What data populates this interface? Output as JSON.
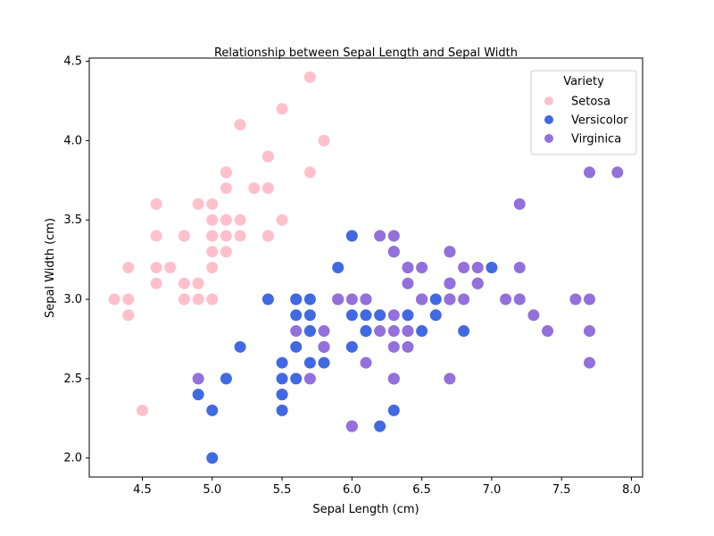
{
  "chart_data": {
    "type": "scatter",
    "title": "Relationship between Sepal Length and Sepal Width",
    "xlabel": "Sepal Length (cm)",
    "ylabel": "Sepal Width (cm)",
    "xlim": [
      4.12,
      8.08
    ],
    "ylim": [
      1.88,
      4.52
    ],
    "xticks": [
      "4.5",
      "5.0",
      "5.5",
      "6.0",
      "6.5",
      "7.0",
      "7.5",
      "8.0"
    ],
    "yticks": [
      "2.0",
      "2.5",
      "3.0",
      "3.5",
      "4.0",
      "4.5"
    ],
    "grid": false,
    "legend": {
      "title": "Variety",
      "placement": "top-right"
    },
    "series": [
      {
        "name": "Setosa",
        "color": "#ffc0cb",
        "points": [
          [
            5.1,
            3.5
          ],
          [
            4.9,
            3.0
          ],
          [
            4.7,
            3.2
          ],
          [
            4.6,
            3.1
          ],
          [
            5.0,
            3.6
          ],
          [
            5.4,
            3.9
          ],
          [
            4.6,
            3.4
          ],
          [
            5.0,
            3.4
          ],
          [
            4.4,
            2.9
          ],
          [
            4.9,
            3.1
          ],
          [
            5.4,
            3.7
          ],
          [
            4.8,
            3.4
          ],
          [
            4.8,
            3.0
          ],
          [
            4.3,
            3.0
          ],
          [
            5.8,
            4.0
          ],
          [
            5.7,
            4.4
          ],
          [
            5.4,
            3.9
          ],
          [
            5.1,
            3.5
          ],
          [
            5.7,
            3.8
          ],
          [
            5.1,
            3.8
          ],
          [
            5.4,
            3.4
          ],
          [
            5.1,
            3.7
          ],
          [
            4.6,
            3.6
          ],
          [
            5.1,
            3.3
          ],
          [
            4.8,
            3.4
          ],
          [
            5.0,
            3.0
          ],
          [
            5.0,
            3.4
          ],
          [
            5.2,
            3.5
          ],
          [
            5.2,
            3.4
          ],
          [
            4.7,
            3.2
          ],
          [
            4.8,
            3.1
          ],
          [
            5.4,
            3.4
          ],
          [
            5.2,
            4.1
          ],
          [
            5.5,
            4.2
          ],
          [
            4.9,
            3.1
          ],
          [
            5.0,
            3.2
          ],
          [
            5.5,
            3.5
          ],
          [
            4.9,
            3.6
          ],
          [
            4.4,
            3.0
          ],
          [
            5.1,
            3.4
          ],
          [
            5.0,
            3.5
          ],
          [
            4.5,
            2.3
          ],
          [
            4.4,
            3.2
          ],
          [
            5.0,
            3.5
          ],
          [
            5.1,
            3.8
          ],
          [
            4.8,
            3.0
          ],
          [
            5.1,
            3.8
          ],
          [
            4.6,
            3.2
          ],
          [
            5.3,
            3.7
          ],
          [
            5.0,
            3.3
          ]
        ]
      },
      {
        "name": "Versicolor",
        "color": "#4169e1",
        "points": [
          [
            7.0,
            3.2
          ],
          [
            6.4,
            3.2
          ],
          [
            6.9,
            3.1
          ],
          [
            5.5,
            2.3
          ],
          [
            6.5,
            2.8
          ],
          [
            5.7,
            2.8
          ],
          [
            6.3,
            3.3
          ],
          [
            4.9,
            2.4
          ],
          [
            6.6,
            2.9
          ],
          [
            5.2,
            2.7
          ],
          [
            5.0,
            2.0
          ],
          [
            5.9,
            3.0
          ],
          [
            6.0,
            2.2
          ],
          [
            6.1,
            2.9
          ],
          [
            5.6,
            2.9
          ],
          [
            6.7,
            3.1
          ],
          [
            5.6,
            3.0
          ],
          [
            5.8,
            2.7
          ],
          [
            6.2,
            2.2
          ],
          [
            5.6,
            2.5
          ],
          [
            5.9,
            3.2
          ],
          [
            6.1,
            2.8
          ],
          [
            6.3,
            2.5
          ],
          [
            6.1,
            2.8
          ],
          [
            6.4,
            2.9
          ],
          [
            6.6,
            3.0
          ],
          [
            6.8,
            2.8
          ],
          [
            6.7,
            3.0
          ],
          [
            6.0,
            2.9
          ],
          [
            5.7,
            2.6
          ],
          [
            5.5,
            2.4
          ],
          [
            5.5,
            2.4
          ],
          [
            5.8,
            2.7
          ],
          [
            6.0,
            2.7
          ],
          [
            5.4,
            3.0
          ],
          [
            6.0,
            3.4
          ],
          [
            6.7,
            3.1
          ],
          [
            6.3,
            2.3
          ],
          [
            5.6,
            3.0
          ],
          [
            5.5,
            2.5
          ],
          [
            5.5,
            2.6
          ],
          [
            6.1,
            3.0
          ],
          [
            5.8,
            2.6
          ],
          [
            5.0,
            2.3
          ],
          [
            5.6,
            2.7
          ],
          [
            5.7,
            3.0
          ],
          [
            5.7,
            2.9
          ],
          [
            6.2,
            2.9
          ],
          [
            5.1,
            2.5
          ],
          [
            5.7,
            2.8
          ]
        ]
      },
      {
        "name": "Virginica",
        "color": "#9370db",
        "points": [
          [
            6.3,
            3.3
          ],
          [
            5.8,
            2.7
          ],
          [
            7.1,
            3.0
          ],
          [
            6.3,
            2.9
          ],
          [
            6.5,
            3.0
          ],
          [
            7.6,
            3.0
          ],
          [
            4.9,
            2.5
          ],
          [
            7.3,
            2.9
          ],
          [
            6.7,
            2.5
          ],
          [
            7.2,
            3.6
          ],
          [
            6.5,
            3.2
          ],
          [
            6.4,
            2.7
          ],
          [
            6.8,
            3.0
          ],
          [
            5.7,
            2.5
          ],
          [
            5.8,
            2.8
          ],
          [
            6.4,
            3.2
          ],
          [
            6.5,
            3.0
          ],
          [
            7.7,
            3.8
          ],
          [
            7.7,
            2.6
          ],
          [
            6.0,
            2.2
          ],
          [
            6.9,
            3.2
          ],
          [
            5.6,
            2.8
          ],
          [
            7.7,
            2.8
          ],
          [
            6.3,
            2.7
          ],
          [
            6.7,
            3.3
          ],
          [
            7.2,
            3.2
          ],
          [
            6.2,
            2.8
          ],
          [
            6.1,
            3.0
          ],
          [
            6.4,
            2.8
          ],
          [
            7.2,
            3.0
          ],
          [
            7.4,
            2.8
          ],
          [
            7.9,
            3.8
          ],
          [
            6.4,
            2.8
          ],
          [
            6.3,
            2.8
          ],
          [
            6.1,
            2.6
          ],
          [
            7.7,
            3.0
          ],
          [
            6.3,
            3.4
          ],
          [
            6.4,
            3.1
          ],
          [
            6.0,
            3.0
          ],
          [
            6.9,
            3.1
          ],
          [
            6.7,
            3.1
          ],
          [
            6.9,
            3.1
          ],
          [
            5.8,
            2.7
          ],
          [
            6.8,
            3.2
          ],
          [
            6.7,
            3.3
          ],
          [
            6.7,
            3.0
          ],
          [
            6.3,
            2.5
          ],
          [
            6.5,
            3.0
          ],
          [
            6.2,
            3.4
          ],
          [
            5.9,
            3.0
          ]
        ]
      }
    ]
  }
}
